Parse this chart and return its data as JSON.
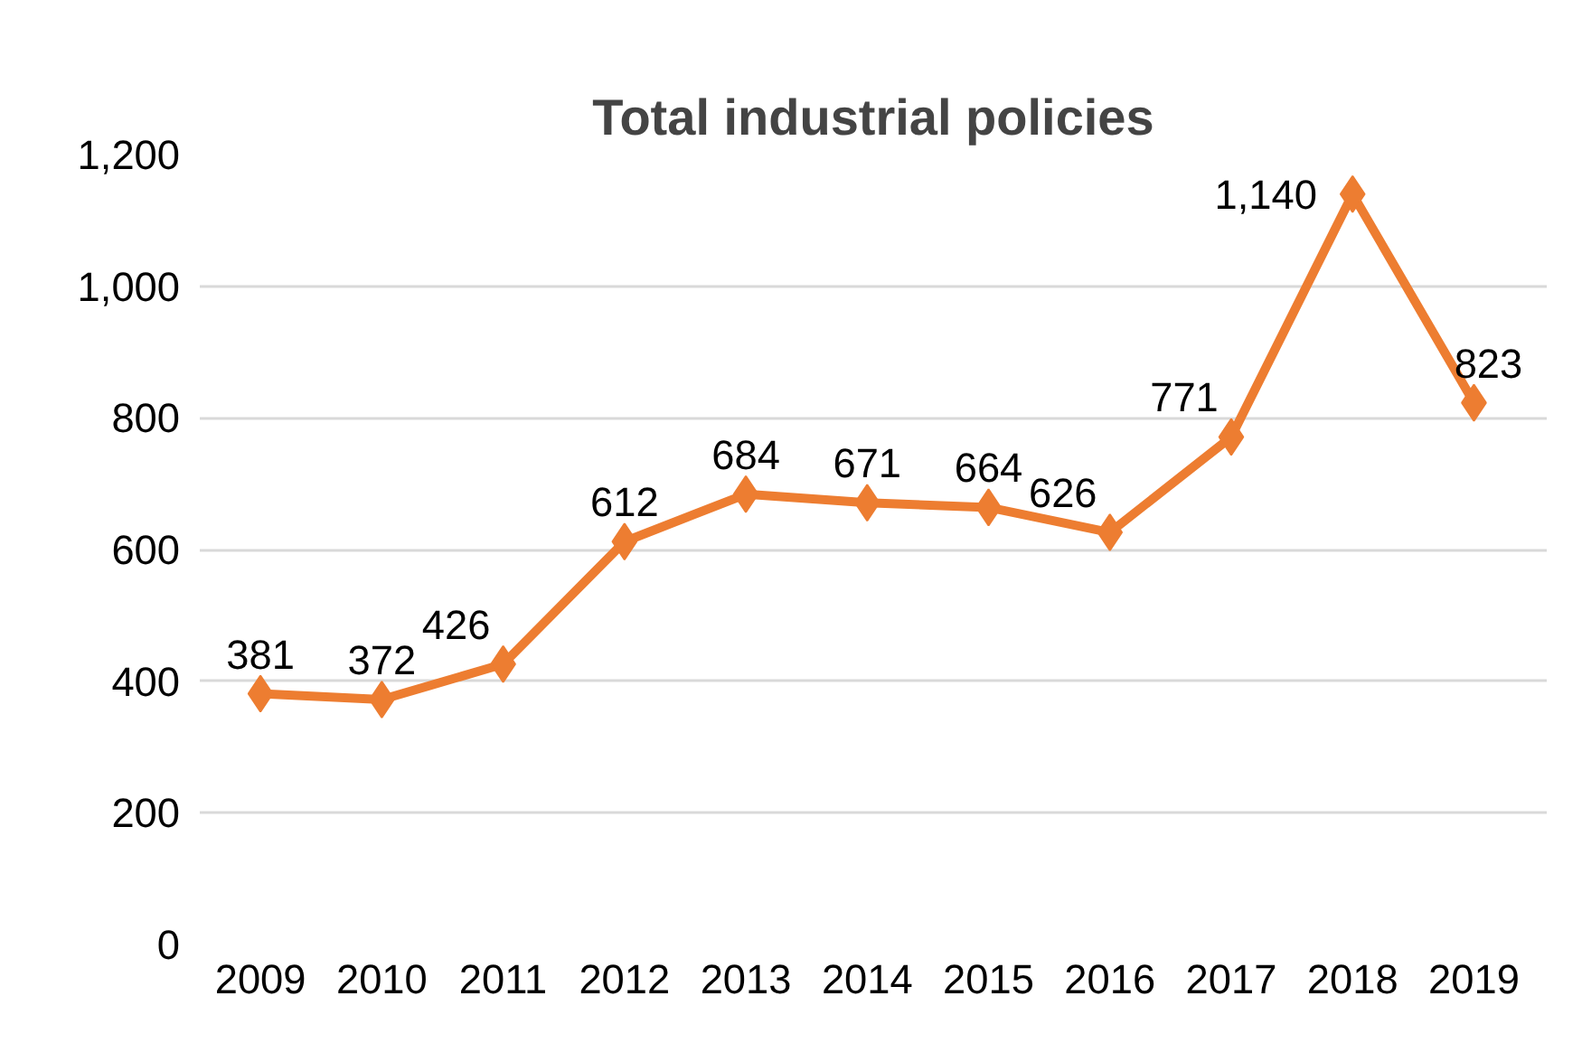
{
  "chart_data": {
    "type": "line",
    "title": "Total industrial policies",
    "categories": [
      "2009",
      "2010",
      "2011",
      "2012",
      "2013",
      "2014",
      "2015",
      "2016",
      "2017",
      "2018",
      "2019"
    ],
    "series": [
      {
        "color": "#ed7d31",
        "values": [
          381,
          372,
          426,
          612,
          684,
          671,
          664,
          626,
          771,
          1140,
          823
        ],
        "value_labels": [
          "381",
          "372",
          "426",
          "612",
          "684",
          "671",
          "664",
          "626",
          "771",
          "1,140",
          "823"
        ]
      }
    ],
    "ylim": [
      0,
      1200
    ],
    "yticks": [
      0,
      200,
      400,
      600,
      800,
      {
        "value": 1000,
        "label": "1,000"
      },
      {
        "value": 1200,
        "label": "1,200"
      }
    ],
    "grid": "y",
    "marker": "diamond",
    "line_style": "solid"
  }
}
